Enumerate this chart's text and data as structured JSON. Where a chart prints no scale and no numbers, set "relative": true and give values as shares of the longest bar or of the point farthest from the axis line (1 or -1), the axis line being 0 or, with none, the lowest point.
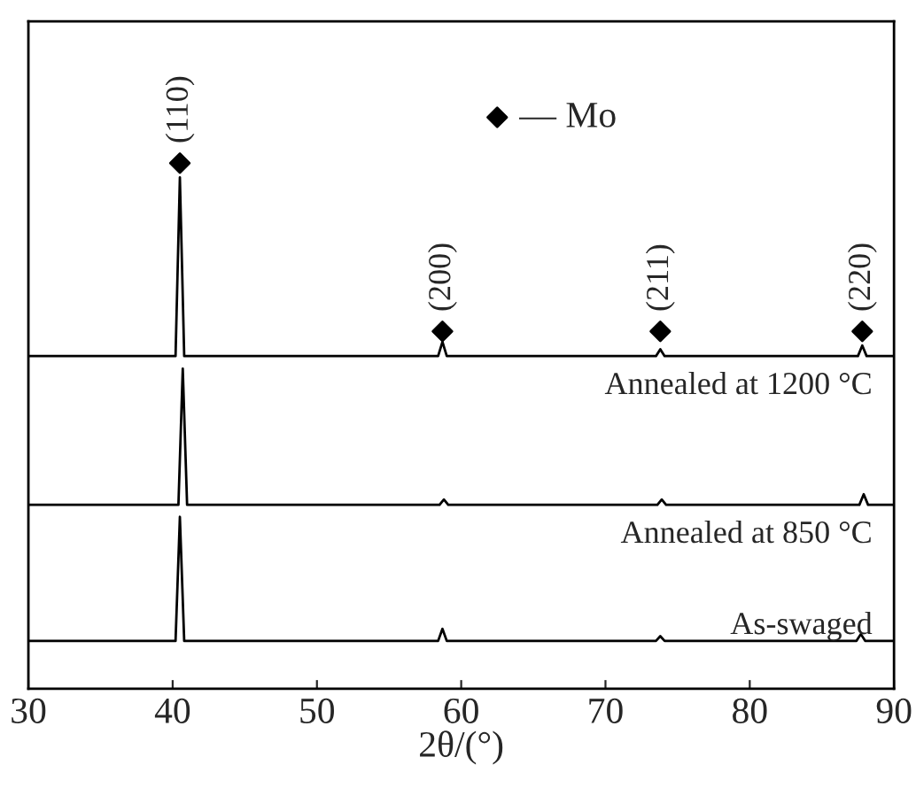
{
  "chart_data": {
    "type": "line",
    "relative": true,
    "xlabel": "2θ/(°)",
    "xlim": [
      30,
      90
    ],
    "xticks": [
      30,
      40,
      50,
      60,
      70,
      80,
      90
    ],
    "tick_labels": "x",
    "grid": false,
    "legend": "top",
    "marker": "none",
    "series": [
      {
        "name": "As-swaged",
        "color": "#000000",
        "x": [
          30,
          40.2,
          40.5,
          40.8,
          58.4,
          58.7,
          59.0,
          73.5,
          73.8,
          74.1,
          87.4,
          87.7,
          88.0,
          90
        ],
        "values": [
          0.091,
          0.091,
          0.327,
          0.091,
          0.091,
          0.114,
          0.091,
          0.091,
          0.1,
          0.091,
          0.091,
          0.104,
          0.091,
          0.091
        ]
      },
      {
        "name": "Annealed at 850 °C",
        "color": "#000000",
        "x": [
          30,
          40.4,
          40.7,
          41.0,
          58.5,
          58.8,
          59.1,
          73.6,
          73.9,
          74.2,
          87.6,
          87.9,
          88.2,
          90
        ],
        "values": [
          0.35,
          0.35,
          0.609,
          0.35,
          0.35,
          0.36,
          0.35,
          0.35,
          0.36,
          0.35,
          0.35,
          0.37,
          0.35,
          0.35
        ]
      },
      {
        "name": "Annealed at 1200 °C",
        "color": "#000000",
        "x": [
          30,
          40.2,
          40.5,
          40.8,
          58.4,
          58.7,
          59.0,
          73.5,
          73.8,
          74.1,
          87.5,
          87.8,
          88.1,
          90
        ],
        "values": [
          0.633,
          0.633,
          0.973,
          0.633,
          0.633,
          0.66,
          0.633,
          0.633,
          0.646,
          0.633,
          0.633,
          0.653,
          0.633,
          0.633
        ]
      },
      {
        "name": "— Mo",
        "type": "scatter",
        "marker": "diamond",
        "color": "#000000",
        "x": [
          40.5,
          58.7,
          73.8,
          87.8
        ],
        "values": [
          1.0,
          0.68,
          0.68,
          0.68
        ]
      }
    ],
    "annotations": [
      "(110)",
      "(200)",
      "(211)",
      "(220)"
    ]
  }
}
